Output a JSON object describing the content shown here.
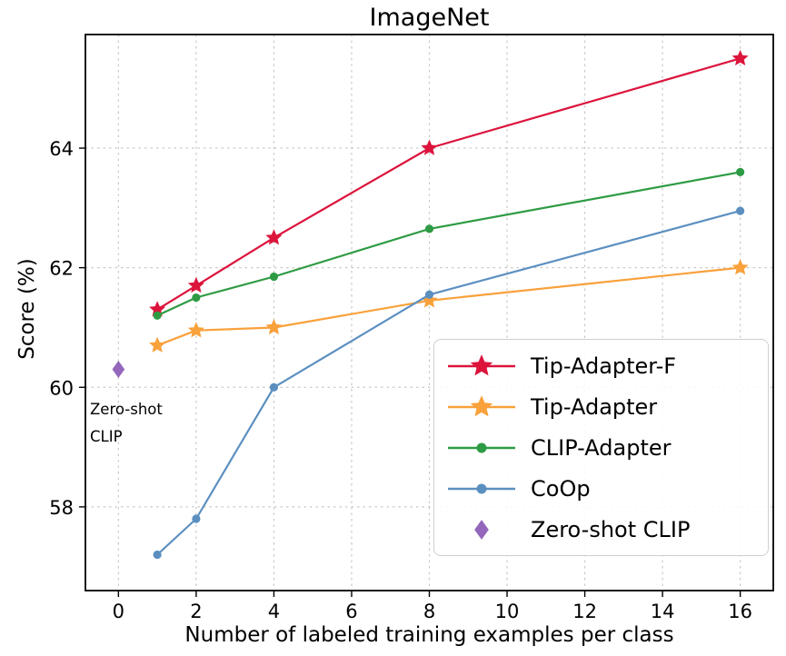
{
  "chart_data": {
    "type": "line",
    "title": "ImageNet",
    "xlabel": "Number of labeled training examples per class",
    "ylabel": "Score (%)",
    "xlim": [
      -0.85,
      16.85
    ],
    "ylim": [
      56.6,
      65.9
    ],
    "x_ticks": [
      0,
      2,
      4,
      6,
      8,
      10,
      12,
      14,
      16
    ],
    "y_ticks": [
      58,
      60,
      62,
      64
    ],
    "grid": "dashed",
    "legend_position": "lower-right",
    "annotation": {
      "line1": "Zero-shot",
      "line2": "CLIP"
    },
    "series": [
      {
        "name": "Tip-Adapter-F",
        "color": "#dc143c",
        "marker": "star",
        "x": [
          1,
          2,
          4,
          8,
          16
        ],
        "y": [
          61.3,
          61.7,
          62.5,
          64.0,
          65.5
        ]
      },
      {
        "name": "Tip-Adapter",
        "color": "#f9a13b",
        "marker": "star",
        "x": [
          1,
          2,
          4,
          8,
          16
        ],
        "y": [
          60.7,
          60.95,
          61.0,
          61.45,
          62.0
        ]
      },
      {
        "name": "CLIP-Adapter",
        "color": "#2e9b44",
        "marker": "circle",
        "x": [
          1,
          2,
          4,
          8,
          16
        ],
        "y": [
          61.2,
          61.5,
          61.85,
          62.65,
          63.6
        ]
      },
      {
        "name": "CoOp",
        "color": "#5b8fc0",
        "marker": "circle",
        "x": [
          1,
          2,
          4,
          8,
          16
        ],
        "y": [
          57.2,
          57.8,
          60.0,
          61.55,
          62.95
        ]
      },
      {
        "name": "Zero-shot CLIP",
        "color": "#9467bd",
        "marker": "diamond",
        "line": false,
        "x": [
          0
        ],
        "y": [
          60.3
        ]
      }
    ]
  }
}
